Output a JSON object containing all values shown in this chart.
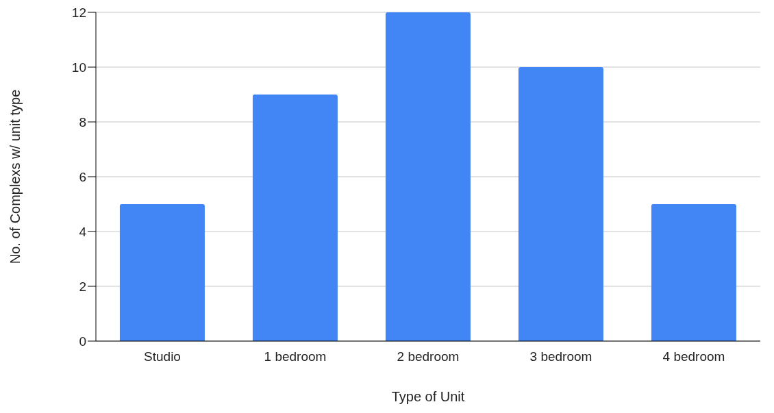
{
  "chart_data": {
    "type": "bar",
    "xlabel": "Type of Unit",
    "ylabel": "No. of Complexs w/ unit type",
    "categories": [
      "Studio",
      "1 bedroom",
      "2 bedroom",
      "3 bedroom",
      "4 bedroom"
    ],
    "values": [
      5,
      9,
      12,
      10,
      5
    ],
    "color": "#4285f4",
    "ylim": [
      0,
      12
    ],
    "yticks": [
      0,
      2,
      4,
      6,
      8,
      10,
      12
    ],
    "grid": "y"
  }
}
